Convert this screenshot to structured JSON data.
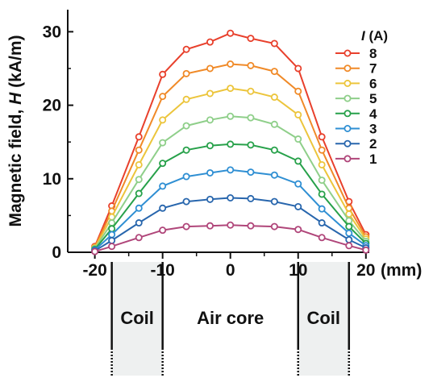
{
  "chart_data": {
    "type": "line",
    "xlabel": "(mm)",
    "ylabel": "Magnetic field, H (kA/m)",
    "ylabel_parts": {
      "pre": "Magnetic field, ",
      "var": "H",
      "post": " (kA/m)"
    },
    "xlim": [
      -24,
      20.5
    ],
    "ylim": [
      0,
      33
    ],
    "xticks": [
      -20,
      -10,
      0,
      10,
      20
    ],
    "xtick_labels": [
      "-20",
      "-10",
      "0",
      "10",
      "20"
    ],
    "yticks": [
      0,
      10,
      20,
      30
    ],
    "ytick_labels": [
      "0",
      "10",
      "20",
      "30"
    ],
    "x": [
      -20,
      -17.5,
      -13.5,
      -10,
      -6.5,
      -3,
      0,
      3,
      6.5,
      10,
      13.5,
      17.5,
      20
    ],
    "legend": {
      "title_var": "I",
      "title_unit": " (A)",
      "position": "top-right"
    },
    "series": [
      {
        "name": "8",
        "color": "#e8402c",
        "values": [
          0.8,
          6.3,
          15.7,
          24.2,
          27.6,
          28.6,
          29.8,
          29.1,
          28.4,
          25.0,
          15.7,
          6.9,
          2.4
        ]
      },
      {
        "name": "7",
        "color": "#f08a28",
        "values": [
          0.7,
          5.6,
          13.9,
          21.2,
          24.3,
          25.0,
          25.6,
          25.4,
          24.6,
          21.9,
          13.9,
          6.0,
          2.1
        ]
      },
      {
        "name": "6",
        "color": "#ecc53c",
        "values": [
          0.6,
          4.8,
          11.9,
          18.0,
          20.8,
          21.6,
          22.3,
          21.9,
          21.1,
          18.7,
          11.9,
          5.2,
          1.8
        ]
      },
      {
        "name": "5",
        "color": "#8fcf8a",
        "values": [
          0.5,
          4.0,
          9.9,
          14.9,
          17.2,
          18.0,
          18.5,
          18.3,
          17.4,
          15.4,
          9.8,
          4.3,
          1.5
        ]
      },
      {
        "name": "4",
        "color": "#27a14a",
        "values": [
          0.4,
          3.2,
          8.0,
          12.1,
          13.9,
          14.5,
          14.7,
          14.6,
          13.9,
          12.4,
          7.9,
          3.5,
          1.2
        ]
      },
      {
        "name": "3",
        "color": "#2f8fd3",
        "values": [
          0.3,
          2.4,
          6.0,
          9.0,
          10.3,
          10.8,
          11.2,
          10.9,
          10.5,
          9.3,
          5.9,
          2.6,
          0.9
        ]
      },
      {
        "name": "2",
        "color": "#2866ad",
        "values": [
          0.2,
          1.6,
          4.0,
          6.0,
          6.9,
          7.2,
          7.4,
          7.3,
          6.9,
          6.2,
          4.0,
          1.7,
          0.6
        ]
      },
      {
        "name": "1",
        "color": "#b0467a",
        "values": [
          0.1,
          0.8,
          2.0,
          3.0,
          3.5,
          3.6,
          3.7,
          3.6,
          3.5,
          3.1,
          2.0,
          0.9,
          0.3
        ]
      }
    ],
    "regions": [
      {
        "label": "Coil",
        "from": -17.5,
        "to": -10,
        "shaded": true
      },
      {
        "label": "Air core",
        "from": -10,
        "to": 10,
        "shaded": false
      },
      {
        "label": "Coil",
        "from": 10,
        "to": 17.5,
        "shaded": true
      }
    ],
    "grid": false
  }
}
